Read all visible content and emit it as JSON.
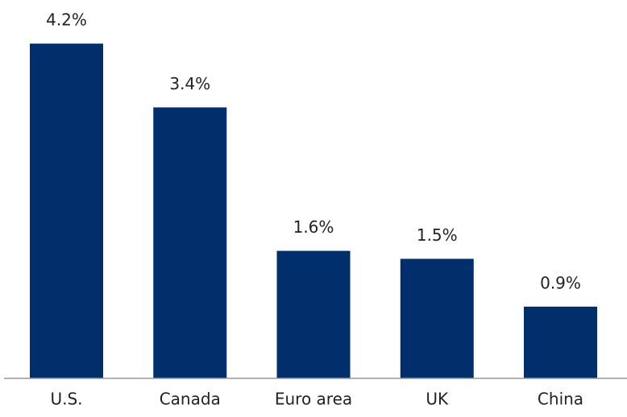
{
  "chart_data": {
    "type": "bar",
    "categories": [
      "U.S.",
      "Canada",
      "Euro area",
      "UK",
      "China"
    ],
    "values": [
      4.2,
      3.4,
      1.6,
      1.5,
      0.9
    ],
    "value_labels": [
      "4.2%",
      "3.4%",
      "1.6%",
      "1.5%",
      "0.9%"
    ],
    "color": "#002f6c"
  }
}
